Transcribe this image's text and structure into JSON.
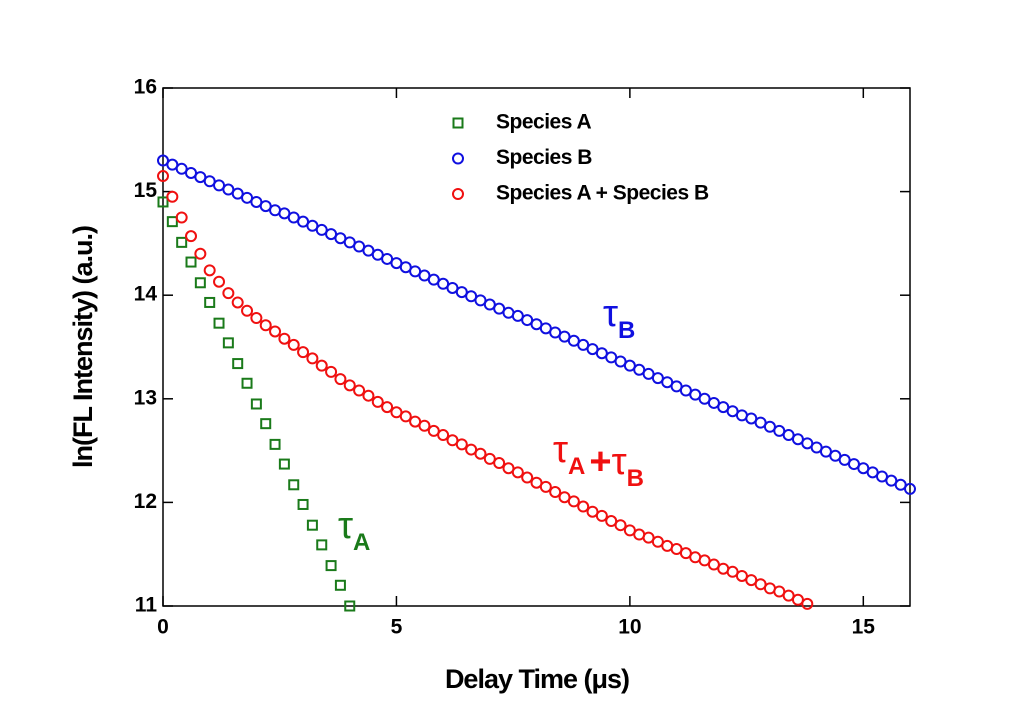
{
  "chart_data": {
    "type": "scatter",
    "xlabel": "Delay Time (μs)",
    "ylabel": "ln(FL Intensity) (a.u.)",
    "xlim": [
      0,
      16
    ],
    "ylim": [
      11,
      16
    ],
    "xticks": [
      0,
      5,
      10,
      15
    ],
    "yticks": [
      11,
      12,
      13,
      14,
      15,
      16
    ],
    "legend": "upper center",
    "series": [
      {
        "name": "Species A",
        "color": "#1a7a1a",
        "marker": "square",
        "x": [
          0,
          0.2,
          0.4,
          0.6,
          0.8,
          1,
          1.2,
          1.4,
          1.6,
          1.8,
          2,
          2.2,
          2.4,
          2.6,
          2.8,
          3,
          3.2,
          3.4,
          3.6,
          3.8,
          4
        ],
        "values": [
          14.9,
          14.71,
          14.51,
          14.32,
          14.12,
          13.93,
          13.73,
          13.54,
          13.34,
          13.15,
          12.95,
          12.76,
          12.56,
          12.37,
          12.17,
          11.98,
          11.78,
          11.59,
          11.39,
          11.2,
          11.0
        ]
      },
      {
        "name": "Species B",
        "color": "#1010e0",
        "marker": "circle",
        "x": [
          0,
          0.2,
          0.4,
          0.6,
          0.8,
          1,
          1.2,
          1.4,
          1.6,
          1.8,
          2,
          2.2,
          2.4,
          2.6,
          2.8,
          3,
          3.2,
          3.4,
          3.6,
          3.8,
          4,
          4.2,
          4.4,
          4.6,
          4.8,
          5,
          5.2,
          5.4,
          5.6,
          5.8,
          6,
          6.2,
          6.4,
          6.6,
          6.8,
          7,
          7.2,
          7.4,
          7.6,
          7.8,
          8,
          8.2,
          8.4,
          8.6,
          8.8,
          9,
          9.2,
          9.4,
          9.6,
          9.8,
          10,
          10.2,
          10.4,
          10.6,
          10.8,
          11,
          11.2,
          11.4,
          11.6,
          11.8,
          12,
          12.2,
          12.4,
          12.6,
          12.8,
          13,
          13.2,
          13.4,
          13.6,
          13.8,
          14,
          14.2,
          14.4,
          14.6,
          14.8,
          15,
          15.2,
          15.4,
          15.6,
          15.8,
          16
        ],
        "values": [
          15.3,
          15.26,
          15.22,
          15.18,
          15.14,
          15.1,
          15.06,
          15.02,
          14.98,
          14.94,
          14.9,
          14.86,
          14.82,
          14.79,
          14.75,
          14.71,
          14.67,
          14.63,
          14.59,
          14.55,
          14.51,
          14.47,
          14.43,
          14.39,
          14.35,
          14.31,
          14.27,
          14.23,
          14.19,
          14.15,
          14.11,
          14.07,
          14.03,
          13.99,
          13.95,
          13.91,
          13.87,
          13.83,
          13.8,
          13.76,
          13.72,
          13.68,
          13.64,
          13.6,
          13.56,
          13.52,
          13.48,
          13.44,
          13.4,
          13.36,
          13.32,
          13.28,
          13.24,
          13.2,
          13.16,
          13.12,
          13.08,
          13.04,
          13.0,
          12.96,
          12.92,
          12.88,
          12.84,
          12.81,
          12.77,
          12.73,
          12.69,
          12.65,
          12.61,
          12.57,
          12.53,
          12.49,
          12.45,
          12.41,
          12.37,
          12.33,
          12.29,
          12.25,
          12.21,
          12.17,
          12.13
        ]
      },
      {
        "name": "Species A + Species B",
        "color": "#f01010",
        "marker": "circle",
        "x": [
          0,
          0.2,
          0.4,
          0.6,
          0.8,
          1,
          1.2,
          1.4,
          1.6,
          1.8,
          2,
          2.2,
          2.4,
          2.6,
          2.8,
          3,
          3.2,
          3.4,
          3.6,
          3.8,
          4,
          4.2,
          4.4,
          4.6,
          4.8,
          5,
          5.2,
          5.4,
          5.6,
          5.8,
          6,
          6.2,
          6.4,
          6.6,
          6.8,
          7,
          7.2,
          7.4,
          7.6,
          7.8,
          8,
          8.2,
          8.4,
          8.6,
          8.8,
          9,
          9.2,
          9.4,
          9.6,
          9.8,
          10,
          10.2,
          10.4,
          10.6,
          10.8,
          11,
          11.2,
          11.4,
          11.6,
          11.8,
          12,
          12.2,
          12.4,
          12.6,
          12.8,
          13,
          13.2,
          13.4,
          13.6,
          13.8
        ],
        "values": [
          15.15,
          14.95,
          14.75,
          14.57,
          14.4,
          14.24,
          14.13,
          14.02,
          13.93,
          13.85,
          13.78,
          13.71,
          13.65,
          13.58,
          13.52,
          13.45,
          13.39,
          13.32,
          13.26,
          13.19,
          13.13,
          13.08,
          13.03,
          12.97,
          12.92,
          12.87,
          12.83,
          12.78,
          12.74,
          12.69,
          12.65,
          12.6,
          12.56,
          12.51,
          12.47,
          12.42,
          12.38,
          12.33,
          12.29,
          12.24,
          12.19,
          12.15,
          12.1,
          12.05,
          12.01,
          11.96,
          11.91,
          11.87,
          11.82,
          11.78,
          11.73,
          11.69,
          11.66,
          11.62,
          11.58,
          11.55,
          11.51,
          11.47,
          11.44,
          11.4,
          11.36,
          11.33,
          11.29,
          11.25,
          11.21,
          11.17,
          11.14,
          11.1,
          11.06,
          11.02
        ]
      }
    ],
    "annotations": [
      {
        "color": "#1010e0",
        "parts": [
          {
            "symbol": "τ",
            "subscript": "B"
          }
        ]
      },
      {
        "color": "#f01010",
        "parts": [
          {
            "symbol": "τ",
            "subscript": "A"
          },
          {
            "symbol": "+"
          },
          {
            "symbol": "τ",
            "subscript": "B"
          }
        ]
      },
      {
        "color": "#1a7a1a",
        "parts": [
          {
            "symbol": "τ",
            "subscript": "A"
          }
        ]
      }
    ]
  }
}
